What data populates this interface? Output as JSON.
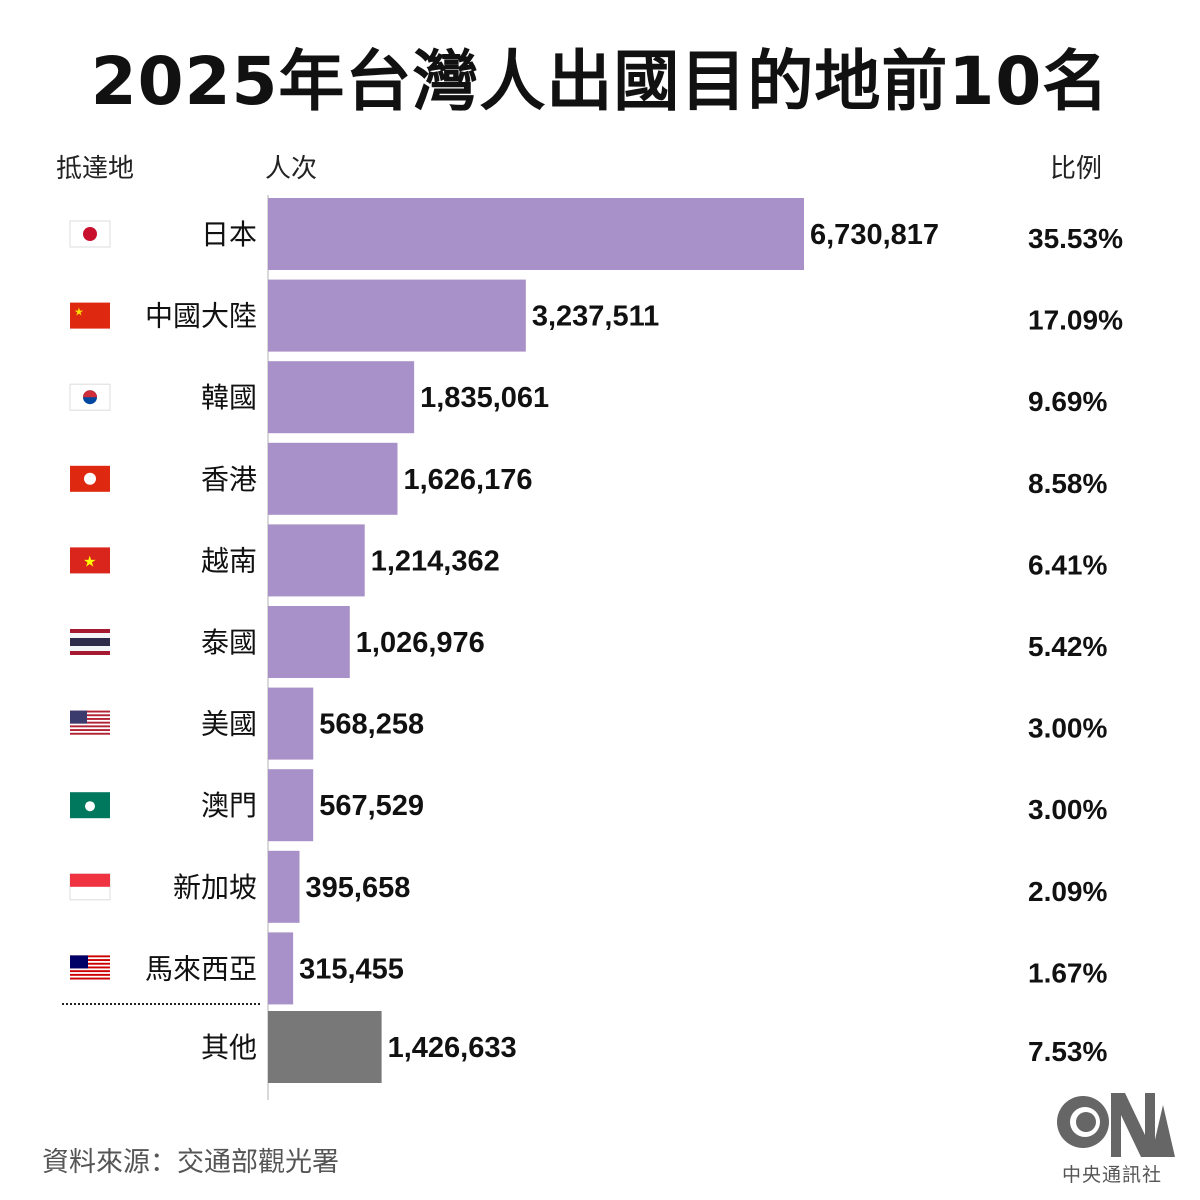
{
  "title": "2025年台灣人出國目的地前10名",
  "headers": {
    "destination": "抵達地",
    "count": "人次",
    "share": "比例"
  },
  "source": "資料來源：交通部觀光署",
  "logo": {
    "text": "中央通訊社",
    "mark": "CNA"
  },
  "colors": {
    "bar": "#a890c8",
    "other_bar": "#787878",
    "axis": "#cccccc"
  },
  "chart_data": {
    "type": "bar",
    "orientation": "horizontal",
    "categories": [
      "日本",
      "中國大陸",
      "韓國",
      "香港",
      "越南",
      "泰國",
      "美國",
      "澳門",
      "新加坡",
      "馬來西亞",
      "其他"
    ],
    "flags": [
      "japan-flag",
      "china-flag",
      "south-korea-flag",
      "hong-kong-flag",
      "vietnam-flag",
      "thailand-flag",
      "usa-flag",
      "macau-flag",
      "singapore-flag",
      "malaysia-flag",
      ""
    ],
    "values": [
      6730817,
      3237511,
      1835061,
      1626176,
      1214362,
      1026976,
      568258,
      567529,
      395658,
      315455,
      1426633
    ],
    "value_labels": [
      "6,730,817",
      "3,237,511",
      "1,835,061",
      "1,626,176",
      "1,214,362",
      "1,026,976",
      "568,258",
      "567,529",
      "395,658",
      "315,455",
      "1,426,633"
    ],
    "shares": [
      "35.53%",
      "17.09%",
      "9.69%",
      "8.58%",
      "6.41%",
      "5.42%",
      "3.00%",
      "3.00%",
      "2.09%",
      "1.67%",
      "7.53%"
    ],
    "xlabel": "人次",
    "grid": false
  }
}
